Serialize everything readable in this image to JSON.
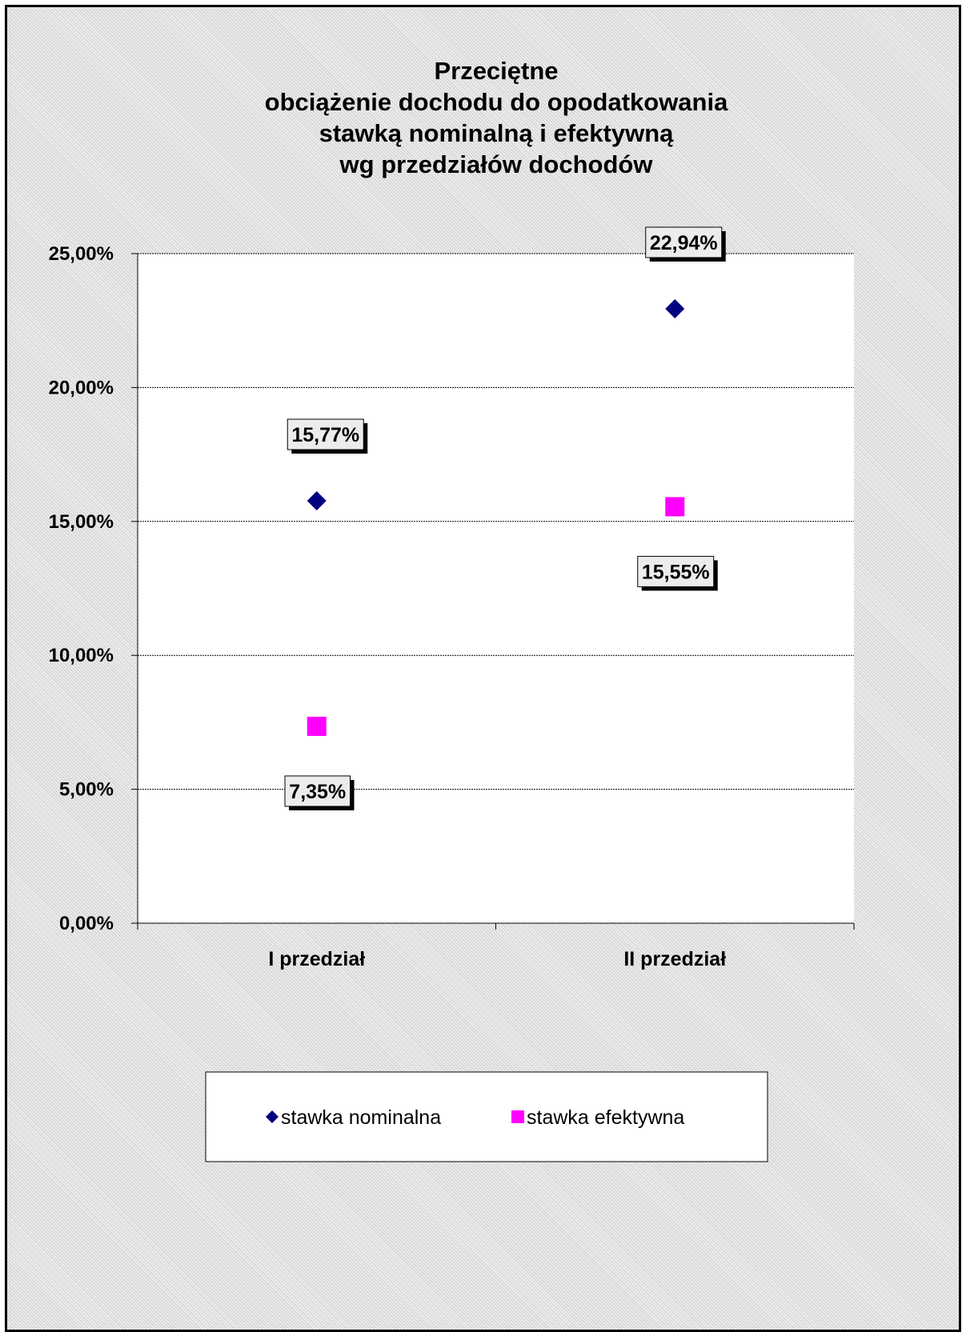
{
  "chart_data": {
    "type": "scatter",
    "title": "Przeciętne\nobciążenie dochodu do opodatkowania\nstawką nominalną i efektywną\nwg przedziałów dochodów",
    "categories": [
      "I przedział",
      "II przedział"
    ],
    "series": [
      {
        "name": "stawka nominalna",
        "values": [
          15.77,
          22.94
        ],
        "labels": [
          "15,77%",
          "22,94%"
        ],
        "marker": "diamond",
        "color": "#000080"
      },
      {
        "name": "stawka efektywna",
        "values": [
          7.35,
          15.55
        ],
        "labels": [
          "7,35%",
          "15,55%"
        ],
        "marker": "square",
        "color": "#ff00ff"
      }
    ],
    "ylim": [
      0,
      25
    ],
    "yticks": [
      0,
      5,
      10,
      15,
      20,
      25
    ],
    "ytick_labels": [
      "0,00%",
      "5,00%",
      "10,00%",
      "15,00%",
      "20,00%",
      "25,00%"
    ],
    "xlabel": "",
    "ylabel": "",
    "grid": true,
    "legend_position": "bottom"
  }
}
